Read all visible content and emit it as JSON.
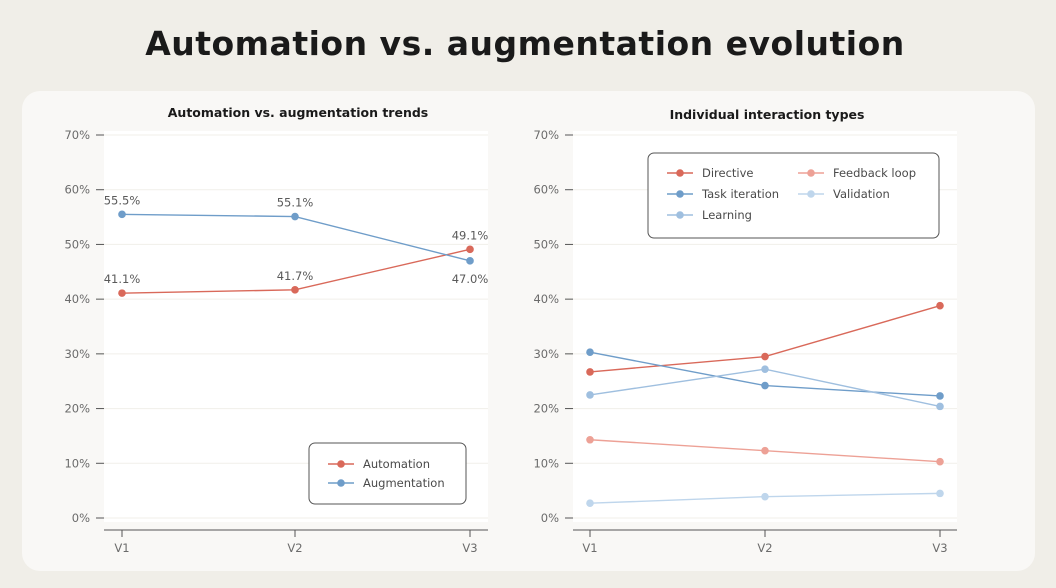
{
  "title": "Automation vs. augmentation evolution",
  "chart_data": [
    {
      "type": "line",
      "title": "Automation vs. augmentation trends",
      "x": [
        "V1",
        "V2",
        "V3"
      ],
      "ylim": [
        0,
        70
      ],
      "yticks": [
        "0%",
        "10%",
        "20%",
        "30%",
        "40%",
        "50%",
        "60%",
        "70%"
      ],
      "grid": true,
      "legend_position": "bottom-right",
      "series": [
        {
          "name": "Automation",
          "color": "#d9695a",
          "values": [
            41.1,
            41.7,
            49.1
          ],
          "labels": [
            "41.1%",
            "41.7%",
            "49.1%"
          ],
          "label_side": [
            "above",
            "above",
            "above"
          ]
        },
        {
          "name": "Augmentation",
          "color": "#6f9dc9",
          "values": [
            55.5,
            55.1,
            47.0
          ],
          "labels": [
            "55.5%",
            "55.1%",
            "47.0%"
          ],
          "label_side": [
            "above",
            "above",
            "below"
          ]
        }
      ]
    },
    {
      "type": "line",
      "title": "Individual interaction types",
      "x": [
        "V1",
        "V2",
        "V3"
      ],
      "ylim": [
        0,
        70
      ],
      "yticks": [
        "0%",
        "10%",
        "20%",
        "30%",
        "40%",
        "50%",
        "60%",
        "70%"
      ],
      "grid": true,
      "legend_position": "top",
      "series": [
        {
          "name": "Directive",
          "color": "#d9695a",
          "values": [
            26.7,
            29.5,
            38.8
          ]
        },
        {
          "name": "Feedback loop",
          "color": "#eda196",
          "values": [
            14.3,
            12.3,
            10.3
          ]
        },
        {
          "name": "Task iteration",
          "color": "#6f9dc9",
          "values": [
            30.3,
            24.2,
            22.3
          ]
        },
        {
          "name": "Validation",
          "color": "#bfd6ec",
          "values": [
            2.7,
            3.9,
            4.5
          ]
        },
        {
          "name": "Learning",
          "color": "#9fbfdf",
          "values": [
            22.5,
            27.2,
            20.4
          ]
        }
      ]
    }
  ]
}
